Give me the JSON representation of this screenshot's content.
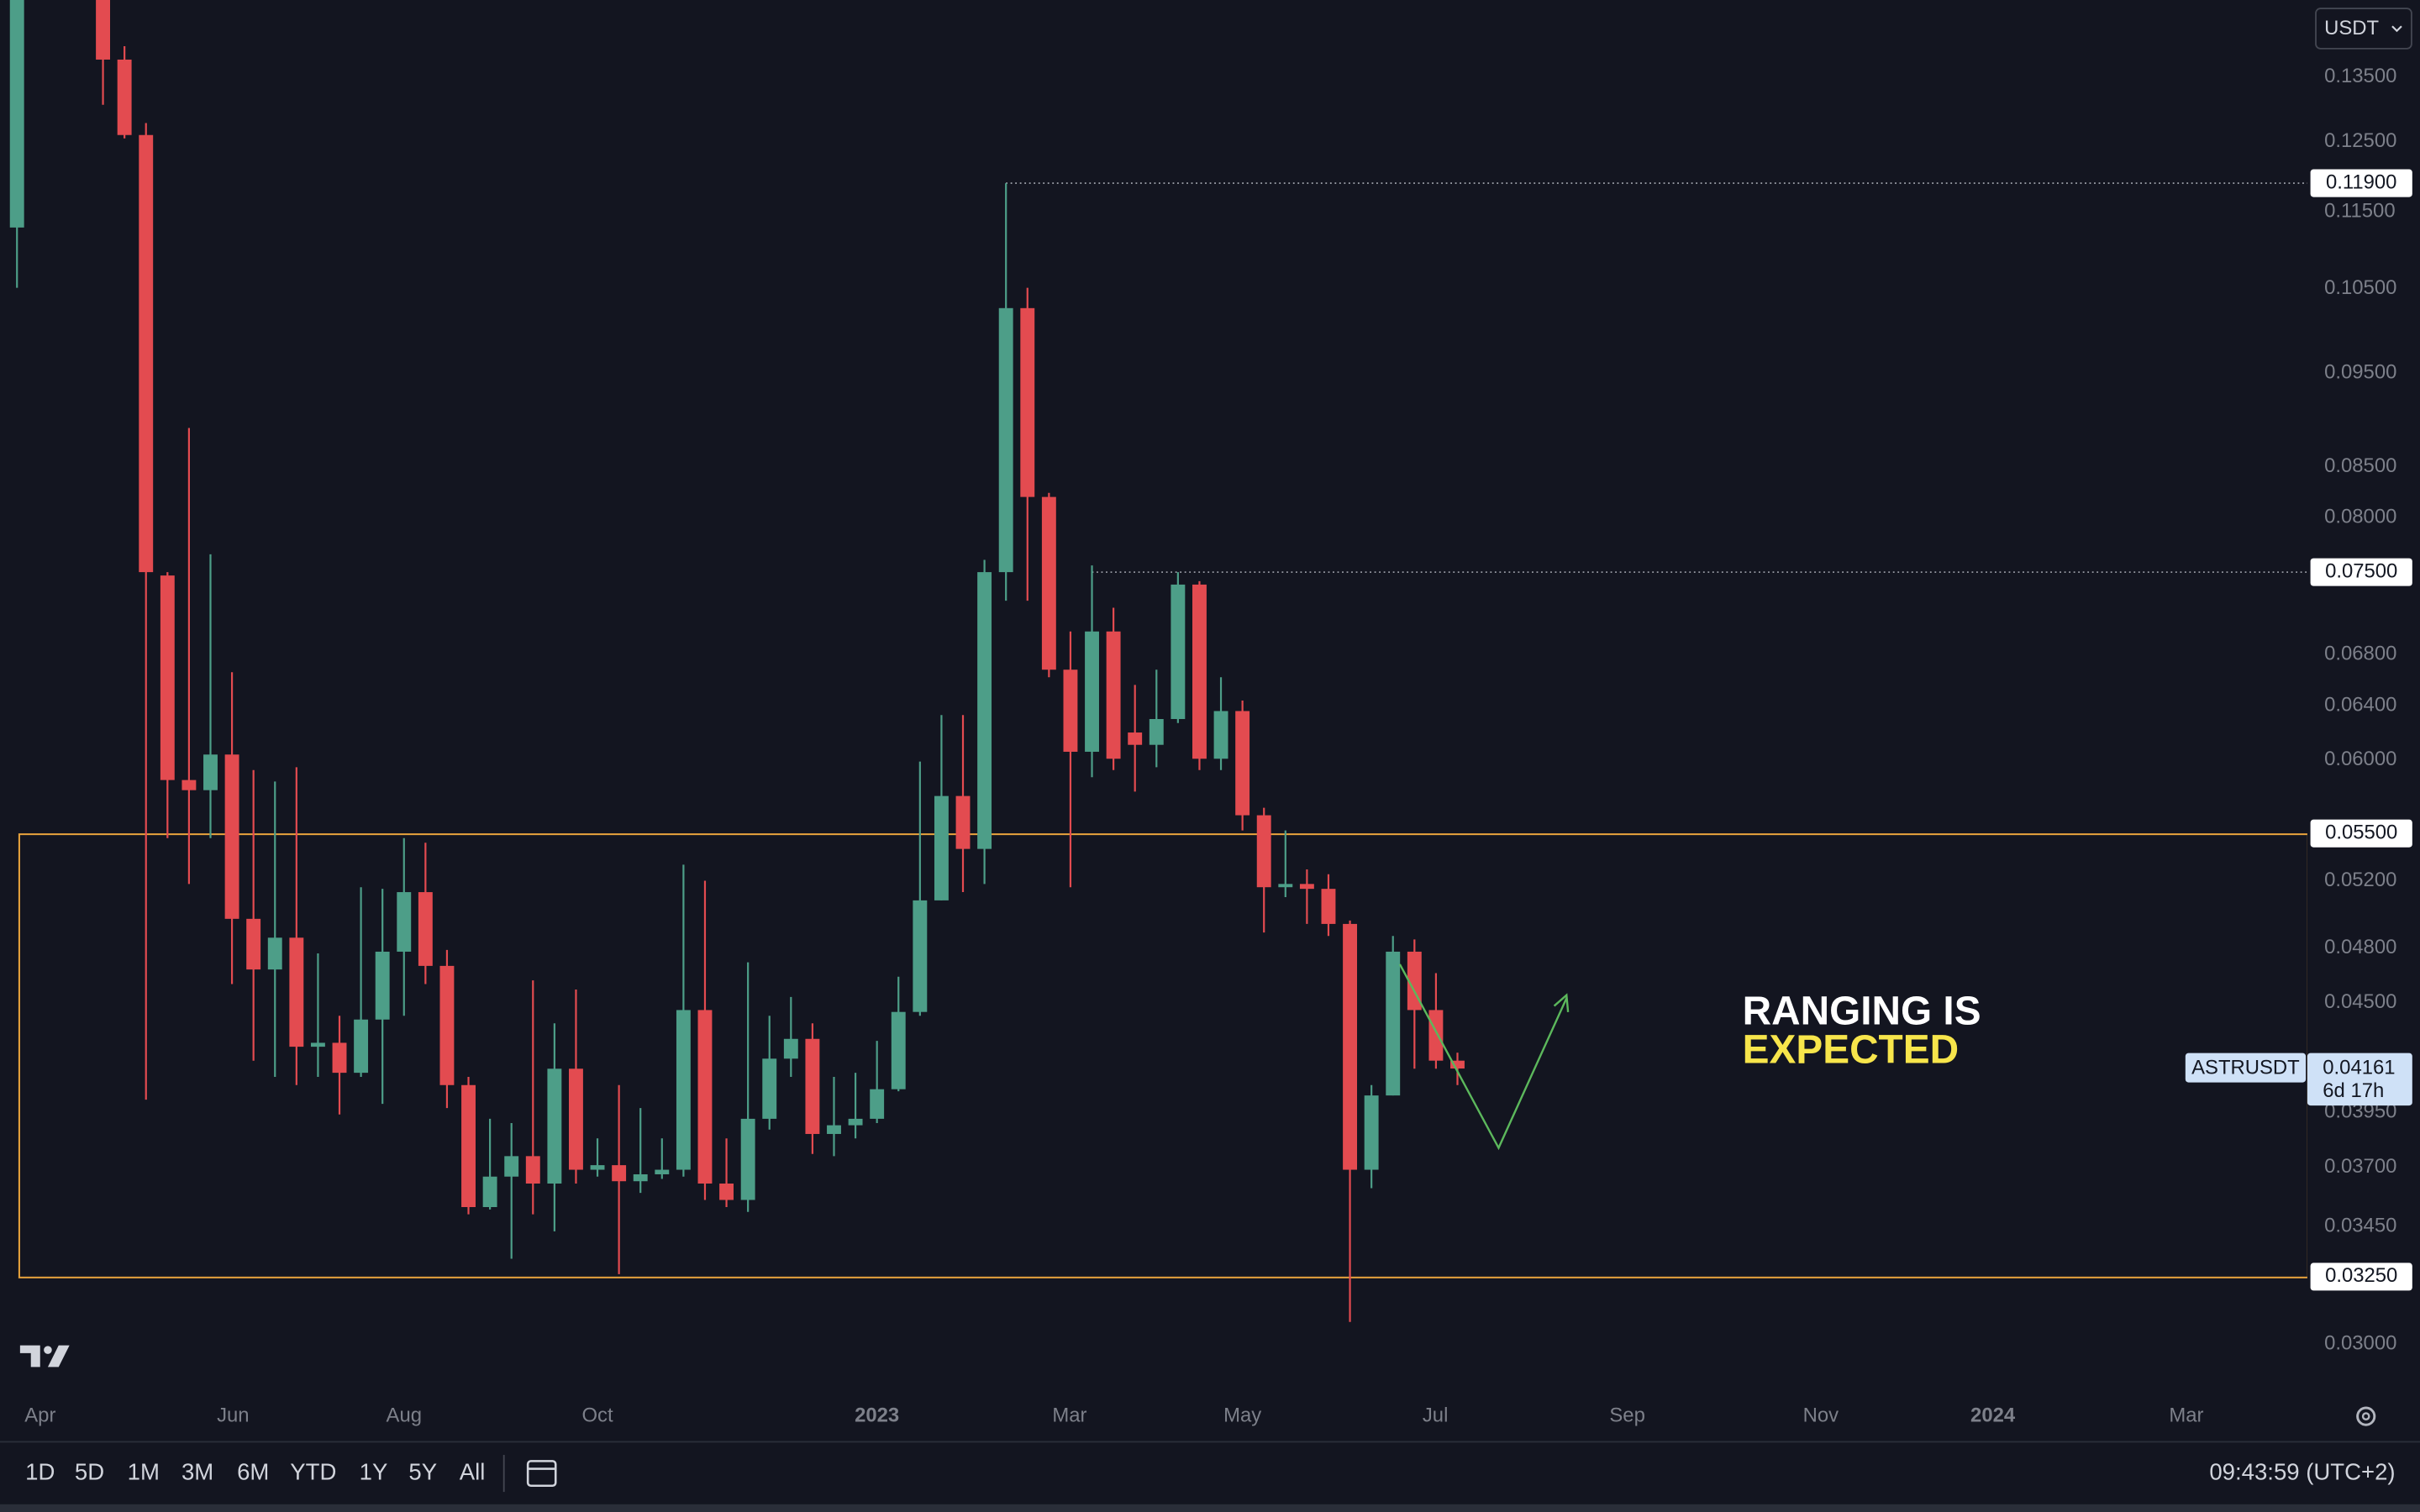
{
  "chart_data": {
    "type": "candlestick",
    "log_scale": true,
    "xlim": [
      -0.79,
      106.53
    ],
    "ylim": [
      0.0282,
      0.1479
    ],
    "up_color": "#4d9e88",
    "down_color": "#e34b50",
    "x": [
      0,
      4,
      5,
      6,
      7,
      8,
      9,
      10,
      11,
      12,
      13,
      14,
      15,
      16,
      17,
      18,
      19,
      20,
      21,
      22,
      23,
      24,
      25,
      26,
      27,
      28,
      29,
      30,
      31,
      32,
      33,
      34,
      35,
      36,
      37,
      38,
      39,
      40,
      41,
      42,
      43,
      44,
      45,
      46,
      47,
      48,
      49,
      50,
      51,
      52,
      53,
      54,
      55,
      56,
      57,
      58,
      59,
      60,
      61,
      62,
      63,
      64,
      65,
      66,
      67
    ],
    "open": [
      0.1129,
      0.152,
      0.1378,
      0.126,
      0.0747,
      0.0586,
      0.0579,
      0.0604,
      0.0497,
      0.0468,
      0.0486,
      0.0427,
      0.0429,
      0.0414,
      0.0441,
      0.0478,
      0.0513,
      0.047,
      0.0408,
      0.0353,
      0.0366,
      0.0375,
      0.0363,
      0.0416,
      0.0369,
      0.0371,
      0.0364,
      0.0367,
      0.0369,
      0.0446,
      0.0363,
      0.0356,
      0.0392,
      0.0421,
      0.0431,
      0.0385,
      0.0389,
      0.0392,
      0.0406,
      0.0445,
      0.0508,
      0.0575,
      0.054,
      0.075,
      0.1026,
      0.082,
      0.0668,
      0.0606,
      0.0699,
      0.062,
      0.0611,
      0.063,
      0.0739,
      0.0601,
      0.0636,
      0.0562,
      0.0516,
      0.0518,
      0.0515,
      0.0494,
      0.0369,
      0.0403,
      0.0478,
      0.0446,
      0.042
    ],
    "high": [
      0.16,
      0.156,
      0.14,
      0.1278,
      0.075,
      0.089,
      0.0766,
      0.0666,
      0.0593,
      0.0585,
      0.0595,
      0.0477,
      0.0443,
      0.0516,
      0.0515,
      0.0547,
      0.0544,
      0.0479,
      0.0412,
      0.0392,
      0.039,
      0.0462,
      0.0439,
      0.0457,
      0.0383,
      0.0408,
      0.0397,
      0.0383,
      0.053,
      0.052,
      0.0383,
      0.0472,
      0.0443,
      0.0453,
      0.0439,
      0.0412,
      0.0414,
      0.043,
      0.0464,
      0.0599,
      0.0633,
      0.0633,
      0.0761,
      0.119,
      0.1051,
      0.0824,
      0.0699,
      0.0756,
      0.0719,
      0.0656,
      0.0668,
      0.075,
      0.0742,
      0.0662,
      0.0644,
      0.0567,
      0.0552,
      0.0527,
      0.0524,
      0.0496,
      0.0408,
      0.0487,
      0.0485,
      0.0466,
      0.0424
    ],
    "low": [
      0.1051,
      0.1306,
      0.1255,
      0.0401,
      0.0547,
      0.0518,
      0.0547,
      0.046,
      0.042,
      0.0412,
      0.0408,
      0.0412,
      0.0394,
      0.0412,
      0.0399,
      0.0443,
      0.046,
      0.0397,
      0.035,
      0.0352,
      0.0332,
      0.035,
      0.0343,
      0.0363,
      0.0366,
      0.0326,
      0.0359,
      0.0365,
      0.0366,
      0.0356,
      0.0353,
      0.0351,
      0.0387,
      0.0412,
      0.0376,
      0.0375,
      0.0383,
      0.039,
      0.0405,
      0.0443,
      0.0508,
      0.0513,
      0.0518,
      0.0725,
      0.0725,
      0.0662,
      0.0516,
      0.0588,
      0.0593,
      0.0578,
      0.0595,
      0.0627,
      0.0593,
      0.0593,
      0.0552,
      0.0489,
      0.051,
      0.0494,
      0.0487,
      0.0308,
      0.0361,
      0.0403,
      0.0416,
      0.0416,
      0.0408
    ],
    "close": [
      0.154,
      0.1378,
      0.126,
      0.075,
      0.0586,
      0.0579,
      0.0604,
      0.0497,
      0.0468,
      0.0486,
      0.0427,
      0.0429,
      0.0414,
      0.0441,
      0.0478,
      0.0513,
      0.047,
      0.0408,
      0.0353,
      0.0366,
      0.0375,
      0.0363,
      0.0416,
      0.0369,
      0.0371,
      0.0364,
      0.0367,
      0.0369,
      0.0446,
      0.0363,
      0.0356,
      0.0392,
      0.0421,
      0.0431,
      0.0385,
      0.0389,
      0.0392,
      0.0406,
      0.0445,
      0.0508,
      0.0575,
      0.054,
      0.075,
      0.1026,
      0.082,
      0.0668,
      0.0606,
      0.0699,
      0.0601,
      0.0611,
      0.063,
      0.0739,
      0.0601,
      0.0636,
      0.0562,
      0.0516,
      0.0518,
      0.0515,
      0.0494,
      0.0369,
      0.0403,
      0.0478,
      0.0446,
      0.042,
      0.04161
    ],
    "yticks": [
      {
        "value": 0.135,
        "label": "0.13500"
      },
      {
        "value": 0.125,
        "label": "0.12500"
      },
      {
        "value": 0.115,
        "label": "0.11500"
      },
      {
        "value": 0.105,
        "label": "0.10500"
      },
      {
        "value": 0.095,
        "label": "0.09500"
      },
      {
        "value": 0.085,
        "label": "0.08500"
      },
      {
        "value": 0.08,
        "label": "0.08000"
      },
      {
        "value": 0.068,
        "label": "0.06800"
      },
      {
        "value": 0.064,
        "label": "0.06400"
      },
      {
        "value": 0.06,
        "label": "0.06000"
      },
      {
        "value": 0.052,
        "label": "0.05200"
      },
      {
        "value": 0.048,
        "label": "0.04800"
      },
      {
        "value": 0.045,
        "label": "0.04500"
      },
      {
        "value": 0.0395,
        "label": "0.03950"
      },
      {
        "value": 0.037,
        "label": "0.03700"
      },
      {
        "value": 0.0345,
        "label": "0.03450"
      },
      {
        "value": 0.03,
        "label": "0.03000"
      }
    ],
    "xticks": [
      {
        "value": 1.08,
        "label": "Apr"
      },
      {
        "value": 10.05,
        "label": "Jun"
      },
      {
        "value": 18.0,
        "label": "Aug"
      },
      {
        "value": 27.0,
        "label": "Oct"
      },
      {
        "value": 40.0,
        "label": "2023"
      },
      {
        "value": 48.96,
        "label": "Mar"
      },
      {
        "value": 57.0,
        "label": "May"
      },
      {
        "value": 65.97,
        "label": "Jul"
      },
      {
        "value": 74.9,
        "label": "Sep"
      },
      {
        "value": 83.9,
        "label": "Nov"
      },
      {
        "value": 91.9,
        "label": "2024"
      },
      {
        "value": 100.9,
        "label": "Mar"
      }
    ],
    "levels": [
      {
        "value": 0.119,
        "label": "0.11900",
        "start": 46,
        "style": "dotted"
      },
      {
        "value": 0.075,
        "label": "0.07500",
        "start": 50,
        "style": "dotted"
      },
      {
        "value": 0.055,
        "label": "0.05500",
        "start": 0.07,
        "style": "box"
      },
      {
        "value": 0.0325,
        "label": "0.03250",
        "start": 0.07,
        "style": "box"
      }
    ],
    "box_color": "#e8a33d",
    "last": {
      "value": 0.04161,
      "countdown": "6d 17h",
      "symbol": "ASTRUSDT",
      "color": "#cfe1f7"
    },
    "annotations": [
      {
        "text": "RANGING IS",
        "color": "#ffffff"
      },
      {
        "text": "EXPECTED",
        "color": "#f7e54b"
      }
    ]
  },
  "currency_menu": "USDT",
  "toolbar": {
    "ranges": [
      "1D",
      "5D",
      "1M",
      "3M",
      "6M",
      "YTD",
      "1Y",
      "5Y",
      "All"
    ],
    "clock": "09:43:59 (UTC+2)"
  }
}
